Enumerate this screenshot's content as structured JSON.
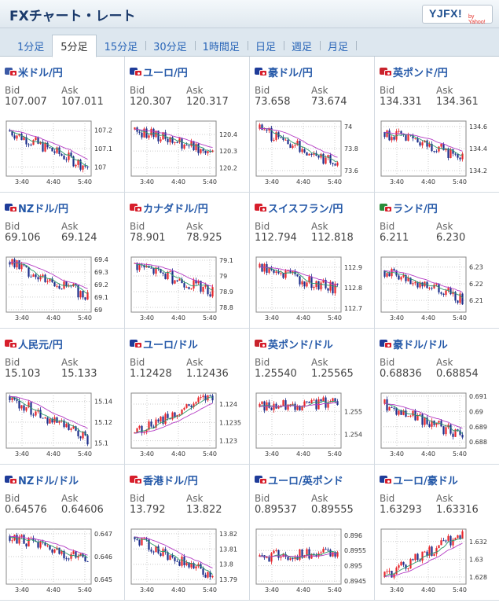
{
  "header": {
    "title": "FXチャート・レート",
    "logo": "YJFX!",
    "logo_sub": "by Yahoo!"
  },
  "tabs": [
    {
      "label": "1分足",
      "active": false
    },
    {
      "label": "5分足",
      "active": true
    },
    {
      "label": "15分足",
      "active": false
    },
    {
      "label": "30分足",
      "active": false
    },
    {
      "label": "1時間足",
      "active": false
    },
    {
      "label": "日足",
      "active": false
    },
    {
      "label": "週足",
      "active": false
    },
    {
      "label": "月足",
      "active": false
    }
  ],
  "labels": {
    "bid": "Bid",
    "ask": "Ask"
  },
  "colors": {
    "up": "#e8262b",
    "down": "#1d2f8c",
    "ma_short": "#2e9a6b",
    "ma_long": "#b43bc4",
    "pair_text": "#2458a8"
  },
  "pairs": [
    {
      "name": "米ドル/円",
      "flag": "#3c5aa6",
      "bid": "107.007",
      "ask": "107.011",
      "chart_data": {
        "type": "candlestick",
        "x_ticks": [
          "3:40",
          "4:40",
          "5:40"
        ],
        "y_ticks": [
          "107.2",
          "107.1",
          "107"
        ],
        "ylim": [
          106.95,
          107.25
        ],
        "trend": "down",
        "start": 107.2,
        "end": 107.0
      }
    },
    {
      "name": "ユーロ/円",
      "flag": "#1f3c99",
      "bid": "120.307",
      "ask": "120.317",
      "chart_data": {
        "type": "candlestick",
        "x_ticks": [
          "3:40",
          "4:40",
          "5:40"
        ],
        "y_ticks": [
          "120.4",
          "120.3",
          "120.2"
        ],
        "ylim": [
          120.15,
          120.48
        ],
        "trend": "down",
        "start": 120.43,
        "end": 120.3
      }
    },
    {
      "name": "豪ドル/円",
      "flag": "#1f3c99",
      "bid": "73.658",
      "ask": "73.674",
      "chart_data": {
        "type": "candlestick",
        "x_ticks": [
          "3:40",
          "4:40",
          "5:40"
        ],
        "y_ticks": [
          "74",
          "73.8",
          "73.6"
        ],
        "ylim": [
          73.55,
          74.05
        ],
        "trend": "down",
        "start": 73.98,
        "end": 73.66
      }
    },
    {
      "name": "英ポンド/円",
      "flag": "#c8232c",
      "bid": "134.331",
      "ask": "134.361",
      "chart_data": {
        "type": "candlestick",
        "x_ticks": [
          "3:40",
          "4:40",
          "5:40"
        ],
        "y_ticks": [
          "134.6",
          "134.4",
          "134.2"
        ],
        "ylim": [
          134.15,
          134.65
        ],
        "trend": "down",
        "start": 134.55,
        "end": 134.33
      }
    },
    {
      "name": "NZドル/円",
      "flag": "#1f3c99",
      "bid": "69.106",
      "ask": "69.124",
      "chart_data": {
        "type": "candlestick",
        "x_ticks": [
          "3:40",
          "4:40",
          "5:40"
        ],
        "y_ticks": [
          "69.4",
          "69.3",
          "69.2",
          "69.1",
          "69"
        ],
        "ylim": [
          68.98,
          69.42
        ],
        "trend": "down",
        "start": 69.38,
        "end": 69.11
      }
    },
    {
      "name": "カナダドル/円",
      "flag": "#d71e2b",
      "bid": "78.901",
      "ask": "78.925",
      "chart_data": {
        "type": "candlestick",
        "x_ticks": [
          "3:40",
          "4:40",
          "5:40"
        ],
        "y_ticks": [
          "79.1",
          "79",
          "78.9",
          "78.8"
        ],
        "ylim": [
          78.77,
          79.12
        ],
        "trend": "down",
        "start": 79.08,
        "end": 78.9
      }
    },
    {
      "name": "スイスフラン/円",
      "flag": "#d71e2b",
      "bid": "112.794",
      "ask": "112.818",
      "chart_data": {
        "type": "candlestick",
        "x_ticks": [
          "3:40",
          "4:40",
          "5:40"
        ],
        "y_ticks": [
          "112.9",
          "112.8",
          "112.7"
        ],
        "ylim": [
          112.68,
          112.95
        ],
        "trend": "down",
        "start": 112.9,
        "end": 112.79
      }
    },
    {
      "name": "ランド/円",
      "flag": "#2a8c3a",
      "bid": "6.211",
      "ask": "6.230",
      "chart_data": {
        "type": "candlestick",
        "x_ticks": [
          "3:40",
          "4:40",
          "5:40"
        ],
        "y_ticks": [
          "6.23",
          "6.22",
          "6.21"
        ],
        "ylim": [
          6.203,
          6.236
        ],
        "trend": "down",
        "start": 6.228,
        "end": 6.211
      }
    },
    {
      "name": "人民元/円",
      "flag": "#d71e2b",
      "bid": "15.103",
      "ask": "15.133",
      "chart_data": {
        "type": "candlestick",
        "x_ticks": [
          "3:40",
          "4:40",
          "5:40"
        ],
        "y_ticks": [
          "15.14",
          "15.12",
          "15.1"
        ],
        "ylim": [
          15.095,
          15.148
        ],
        "trend": "down",
        "start": 15.145,
        "end": 15.103
      }
    },
    {
      "name": "ユーロ/ドル",
      "flag": "#1f3c99",
      "bid": "1.12428",
      "ask": "1.12436",
      "chart_data": {
        "type": "candlestick",
        "x_ticks": [
          "3:40",
          "4:40",
          "5:40"
        ],
        "y_ticks": [
          "1.124",
          "1.1235",
          "1.123"
        ],
        "ylim": [
          1.1228,
          1.1243
        ],
        "trend": "up",
        "start": 1.1232,
        "end": 1.1242
      }
    },
    {
      "name": "英ポンド/ドル",
      "flag": "#c8232c",
      "bid": "1.25540",
      "ask": "1.25565",
      "chart_data": {
        "type": "candlestick",
        "x_ticks": [
          "3:40",
          "4:40",
          "5:40"
        ],
        "y_ticks": [
          "1.255",
          "1.254"
        ],
        "ylim": [
          1.2534,
          1.2558
        ],
        "trend": "flat",
        "start": 1.2552,
        "end": 1.2554
      }
    },
    {
      "name": "豪ドル/ドル",
      "flag": "#1f3c99",
      "bid": "0.68836",
      "ask": "0.68854",
      "chart_data": {
        "type": "candlestick",
        "x_ticks": [
          "3:40",
          "4:40",
          "5:40"
        ],
        "y_ticks": [
          "0.691",
          "0.69",
          "0.689",
          "0.688"
        ],
        "ylim": [
          0.6876,
          0.6912
        ],
        "trend": "down",
        "start": 0.6905,
        "end": 0.6884
      }
    },
    {
      "name": "NZドル/ドル",
      "flag": "#1f3c99",
      "bid": "0.64576",
      "ask": "0.64606",
      "chart_data": {
        "type": "candlestick",
        "x_ticks": [
          "3:40",
          "4:40",
          "5:40"
        ],
        "y_ticks": [
          "0.647",
          "0.646",
          "0.645"
        ],
        "ylim": [
          0.6448,
          0.6472
        ],
        "trend": "down",
        "start": 0.6469,
        "end": 0.6458
      }
    },
    {
      "name": "香港ドル/円",
      "flag": "#d71e2b",
      "bid": "13.792",
      "ask": "13.822",
      "chart_data": {
        "type": "candlestick",
        "x_ticks": [
          "3:40",
          "4:40",
          "5:40"
        ],
        "y_ticks": [
          "13.82",
          "13.81",
          "13.8",
          "13.79"
        ],
        "ylim": [
          13.787,
          13.823
        ],
        "trend": "down",
        "start": 13.818,
        "end": 13.792
      }
    },
    {
      "name": "ユーロ/英ポンド",
      "flag": "#1f3c99",
      "bid": "0.89537",
      "ask": "0.89555",
      "chart_data": {
        "type": "candlestick",
        "x_ticks": [
          "3:40",
          "4:40",
          "5:40"
        ],
        "y_ticks": [
          "0.896",
          "0.8955",
          "0.895",
          "0.8945"
        ],
        "ylim": [
          0.8944,
          0.8962
        ],
        "trend": "flat",
        "start": 0.8953,
        "end": 0.8954
      }
    },
    {
      "name": "ユーロ/豪ドル",
      "flag": "#1f3c99",
      "bid": "1.63293",
      "ask": "1.63316",
      "chart_data": {
        "type": "candlestick",
        "x_ticks": [
          "3:40",
          "4:40",
          "5:40"
        ],
        "y_ticks": [
          "1.632",
          "1.63",
          "1.628"
        ],
        "ylim": [
          1.6272,
          1.6334
        ],
        "trend": "up",
        "start": 1.628,
        "end": 1.6329
      }
    }
  ]
}
